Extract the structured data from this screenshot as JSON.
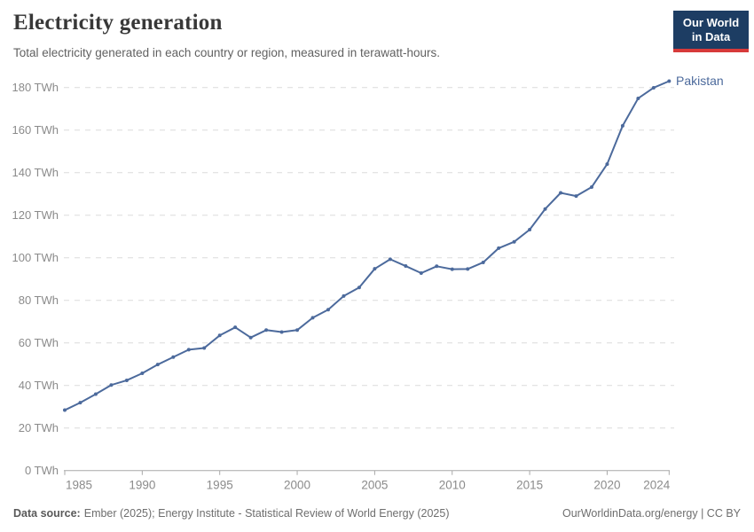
{
  "header": {
    "title": "Electricity generation",
    "subtitle": "Total electricity generated in each country or region, measured in terawatt-hours.",
    "logo": {
      "line1": "Our World",
      "line2": "in Data"
    }
  },
  "footer": {
    "source_label": "Data source:",
    "source_text": "Ember (2025); Energy Institute - Statistical Review of World Energy (2025)",
    "credit": "OurWorldinData.org/energy | CC BY"
  },
  "colors": {
    "accent": "#4C6A9C",
    "logo_bg": "#1d3d63",
    "logo_red": "#d73a3a",
    "grid": "#dcdcdc",
    "axis": "#a8a8a8",
    "tick_text": "#8b8b8b"
  },
  "chart_data": {
    "type": "line",
    "title": "Electricity generation",
    "unit": "TWh",
    "xlim": [
      1985,
      2024
    ],
    "ylim": [
      0,
      186
    ],
    "grid": "horizontal-dashed",
    "legend_position": "end-of-line-label",
    "xticks": [
      1985,
      1990,
      1995,
      2000,
      2005,
      2010,
      2015,
      2020,
      2024
    ],
    "yticks": [
      0,
      20,
      40,
      60,
      80,
      100,
      120,
      140,
      160,
      180
    ],
    "x": [
      1985,
      1986,
      1987,
      1988,
      1989,
      1990,
      1991,
      1992,
      1993,
      1994,
      1995,
      1996,
      1997,
      1998,
      1999,
      2000,
      2001,
      2002,
      2003,
      2004,
      2005,
      2006,
      2007,
      2008,
      2009,
      2010,
      2011,
      2012,
      2013,
      2014,
      2015,
      2016,
      2017,
      2018,
      2019,
      2020,
      2021,
      2022,
      2023,
      2024
    ],
    "series": [
      {
        "name": "Pakistan",
        "color": "#4C6A9C",
        "values": [
          28.4,
          31.9,
          35.9,
          40.2,
          42.4,
          45.7,
          49.8,
          53.3,
          56.8,
          57.6,
          63.5,
          67.3,
          62.5,
          66,
          65.1,
          66,
          71.8,
          75.6,
          82,
          86,
          94.8,
          99.3,
          96.1,
          92.8,
          96,
          94.6,
          94.7,
          97.8,
          104.5,
          107.5,
          113.2,
          122.9,
          130.5,
          129,
          133.2,
          144,
          162,
          174.9,
          179.9,
          183
        ]
      }
    ]
  }
}
